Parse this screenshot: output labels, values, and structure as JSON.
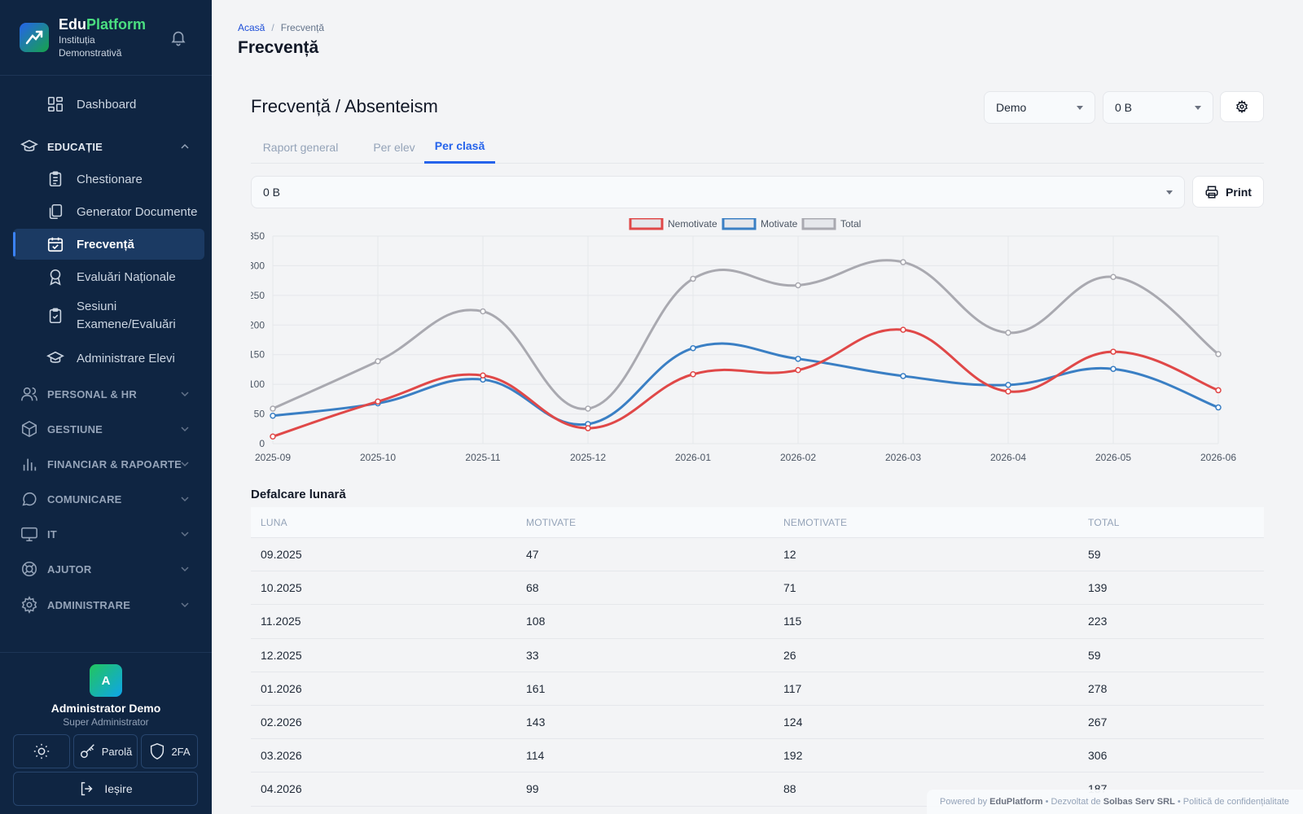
{
  "brand": {
    "name_part1": "Edu",
    "name_part2": "Platform",
    "institution": "Instituția Demonstrativă"
  },
  "sidebar": {
    "dashboard": "Dashboard",
    "education_section": "EDUCAȚIE",
    "education_items": [
      {
        "label": "Chestionare",
        "icon": "clipboard-list-icon"
      },
      {
        "label": "Generator Documente",
        "icon": "documents-icon"
      },
      {
        "label": "Frecvență",
        "icon": "calendar-check-icon",
        "active": true
      },
      {
        "label": "Evaluări Naționale",
        "icon": "award-icon"
      },
      {
        "label": "Sesiuni Examene/Evaluări",
        "icon": "clipboard-check-icon"
      },
      {
        "label": "Administrare Elevi",
        "icon": "graduation-cap-icon"
      }
    ],
    "sections": [
      {
        "label": "PERSONAL & HR",
        "icon": "users-icon"
      },
      {
        "label": "GESTIUNE",
        "icon": "box-icon"
      },
      {
        "label": "FINANCIAR & RAPOARTE",
        "icon": "bar-chart-icon"
      },
      {
        "label": "COMUNICARE",
        "icon": "chat-icon"
      },
      {
        "label": "IT",
        "icon": "monitor-icon"
      },
      {
        "label": "AJUTOR",
        "icon": "lifebuoy-icon"
      },
      {
        "label": "ADMINISTRARE",
        "icon": "gear-icon"
      }
    ]
  },
  "user": {
    "initial": "A",
    "name": "Administrator Demo",
    "role": "Super Administrator",
    "password_label": "Parolă",
    "twofa_label": "2FA",
    "logout_label": "Ieșire"
  },
  "breadcrumb": {
    "home": "Acasă",
    "current": "Frecvență"
  },
  "page_title": "Frecvență",
  "section_title": "Frecvență / Absenteism",
  "filters": {
    "school": "Demo",
    "class": "0 B",
    "class_filter": "0 B"
  },
  "tabs": [
    "Raport general",
    "Per elev",
    "Per clasă"
  ],
  "active_tab": "Per clasă",
  "print_label": "Print",
  "colors": {
    "sidebar_bg": "#0f2542",
    "accent": "#2563eb",
    "nemotivate": "#e04848",
    "motivate": "#3a7fc4",
    "total": "#a9a9b0"
  },
  "chart_data": {
    "type": "line",
    "x": [
      "2025-09",
      "2025-10",
      "2025-11",
      "2025-12",
      "2026-01",
      "2026-02",
      "2026-03",
      "2026-04",
      "2026-05",
      "2026-06"
    ],
    "series": [
      {
        "name": "Nemotivate",
        "values": [
          12,
          71,
          115,
          26,
          117,
          124,
          192,
          88,
          155,
          90
        ]
      },
      {
        "name": "Motivate",
        "values": [
          47,
          68,
          108,
          33,
          161,
          143,
          114,
          99,
          126,
          61
        ]
      },
      {
        "name": "Total",
        "values": [
          59,
          139,
          223,
          59,
          278,
          267,
          306,
          187,
          281,
          151
        ]
      }
    ],
    "ylim": [
      0,
      350
    ],
    "yticks": [
      0,
      50,
      100,
      150,
      200,
      250,
      300,
      350
    ],
    "grid": true,
    "legend": "top-center"
  },
  "breakdown": {
    "title": "Defalcare lunară",
    "headers": [
      "LUNA",
      "MOTIVATE",
      "NEMOTIVATE",
      "TOTAL"
    ],
    "rows": [
      [
        "09.2025",
        "47",
        "12",
        "59"
      ],
      [
        "10.2025",
        "68",
        "71",
        "139"
      ],
      [
        "11.2025",
        "108",
        "115",
        "223"
      ],
      [
        "12.2025",
        "33",
        "26",
        "59"
      ],
      [
        "01.2026",
        "161",
        "117",
        "278"
      ],
      [
        "02.2026",
        "143",
        "124",
        "267"
      ],
      [
        "03.2026",
        "114",
        "192",
        "306"
      ],
      [
        "04.2026",
        "99",
        "88",
        "187"
      ]
    ]
  },
  "footer": {
    "powered_by": "Powered by",
    "platform": "EduPlatform",
    "developed_by": "• Dezvoltat de",
    "company": "Solbas Serv SRL",
    "privacy": "• Politică de confidențialitate"
  }
}
